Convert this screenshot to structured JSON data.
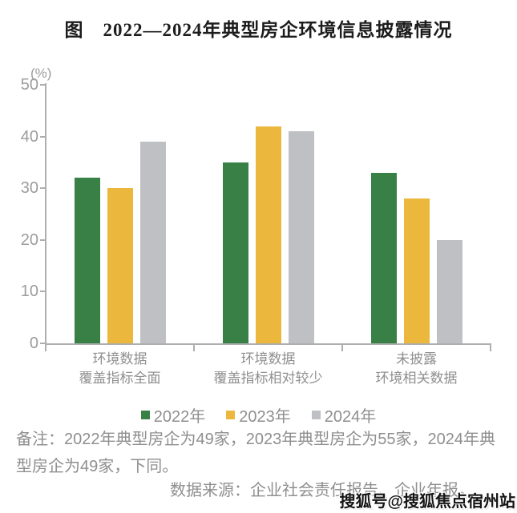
{
  "title": "图　2022—2024年典型房企环境信息披露情况",
  "chart_data": {
    "type": "bar",
    "title": "图　2022—2024年典型房企环境信息披露情况",
    "unit_label": "(%)",
    "categories": [
      "环境数据\n覆盖指标全面",
      "环境数据\n覆盖指标相对较少",
      "未披露\n环境相关数据"
    ],
    "series": [
      {
        "name": "2022年",
        "color": "#388045",
        "values": [
          32,
          35,
          33
        ]
      },
      {
        "name": "2023年",
        "color": "#EBB73D",
        "values": [
          30,
          42,
          28
        ]
      },
      {
        "name": "2024年",
        "color": "#BEC0C3",
        "values": [
          39,
          41,
          20
        ]
      }
    ],
    "ylim": [
      0,
      50
    ],
    "ytick_step": 10,
    "grid": false,
    "legend_position": "bottom",
    "axis_color": "#AEAEAE",
    "tick_label_color": "#9C9C9C"
  },
  "notes": {
    "remark": "备注：2022年典型房企为49家，2023年典型房企为55家，2024年典型房企为49家，下同。",
    "source": "数据来源：企业社会责任报告、企业年报。"
  },
  "watermark": "搜狐号@搜狐焦点宿州站"
}
